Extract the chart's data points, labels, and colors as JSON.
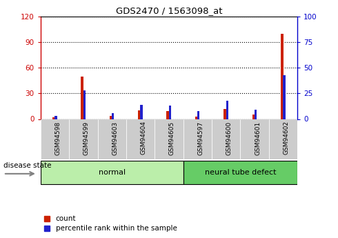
{
  "title": "GDS2470 / 1563098_at",
  "samples": [
    "GSM94598",
    "GSM94599",
    "GSM94603",
    "GSM94604",
    "GSM94605",
    "GSM94597",
    "GSM94600",
    "GSM94601",
    "GSM94602"
  ],
  "count_values": [
    2,
    50,
    4,
    10,
    9,
    3,
    12,
    5,
    100
  ],
  "percentile_values": [
    3,
    28,
    6,
    14,
    13,
    8,
    18,
    9,
    43
  ],
  "groups": [
    {
      "label": "normal",
      "start": 0,
      "end": 5
    },
    {
      "label": "neural tube defect",
      "start": 5,
      "end": 9
    }
  ],
  "left_yaxis": {
    "min": 0,
    "max": 120,
    "ticks": [
      0,
      30,
      60,
      90,
      120
    ],
    "color": "#cc0000"
  },
  "right_yaxis": {
    "min": 0,
    "max": 100,
    "ticks": [
      0,
      25,
      50,
      75,
      100
    ],
    "color": "#0000cc"
  },
  "count_color": "#cc2200",
  "percentile_color": "#2222cc",
  "group_color_normal": "#bbeeaa",
  "group_color_ntd": "#66cc66",
  "tick_box_color": "#cccccc",
  "legend_items": [
    "count",
    "percentile rank within the sample"
  ],
  "disease_state_label": "disease state"
}
